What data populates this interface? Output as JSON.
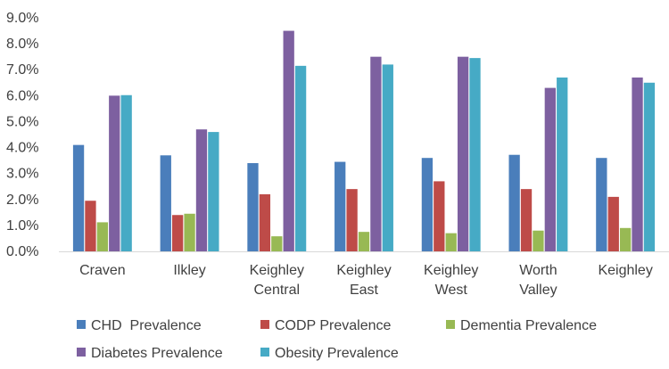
{
  "chart_data": {
    "type": "bar",
    "title": "",
    "xlabel": "",
    "ylabel": "",
    "ylim": [
      0,
      9
    ],
    "y_ticks": [
      "0.0%",
      "1.0%",
      "2.0%",
      "3.0%",
      "4.0%",
      "5.0%",
      "6.0%",
      "7.0%",
      "8.0%",
      "9.0%"
    ],
    "grid": false,
    "legend_position": "bottom",
    "categories": [
      [
        "Craven"
      ],
      [
        "Ilkley"
      ],
      [
        "Keighley",
        "Central"
      ],
      [
        "Keighley",
        "East"
      ],
      [
        "Keighley",
        "West"
      ],
      [
        "Worth",
        "Valley"
      ],
      [
        "Keighley"
      ]
    ],
    "series": [
      {
        "name": "CHD  Prevalence",
        "color": "#4a7ebb",
        "values": [
          4.1,
          3.7,
          3.4,
          3.45,
          3.6,
          3.72,
          3.6
        ]
      },
      {
        "name": "CODP Prevalence",
        "color": "#be4b48",
        "values": [
          1.95,
          1.4,
          2.2,
          2.4,
          2.7,
          2.4,
          2.1
        ]
      },
      {
        "name": "Dementia Prevalence",
        "color": "#98b954",
        "values": [
          1.12,
          1.45,
          0.58,
          0.75,
          0.7,
          0.8,
          0.9
        ]
      },
      {
        "name": "Diabetes Prevalence",
        "color": "#7d60a0",
        "values": [
          6.0,
          4.7,
          8.5,
          7.5,
          7.5,
          6.3,
          6.7
        ]
      },
      {
        "name": "Obesity Prevalence",
        "color": "#46aac5",
        "values": [
          6.02,
          4.6,
          7.15,
          7.2,
          7.45,
          6.7,
          6.5
        ]
      }
    ]
  }
}
